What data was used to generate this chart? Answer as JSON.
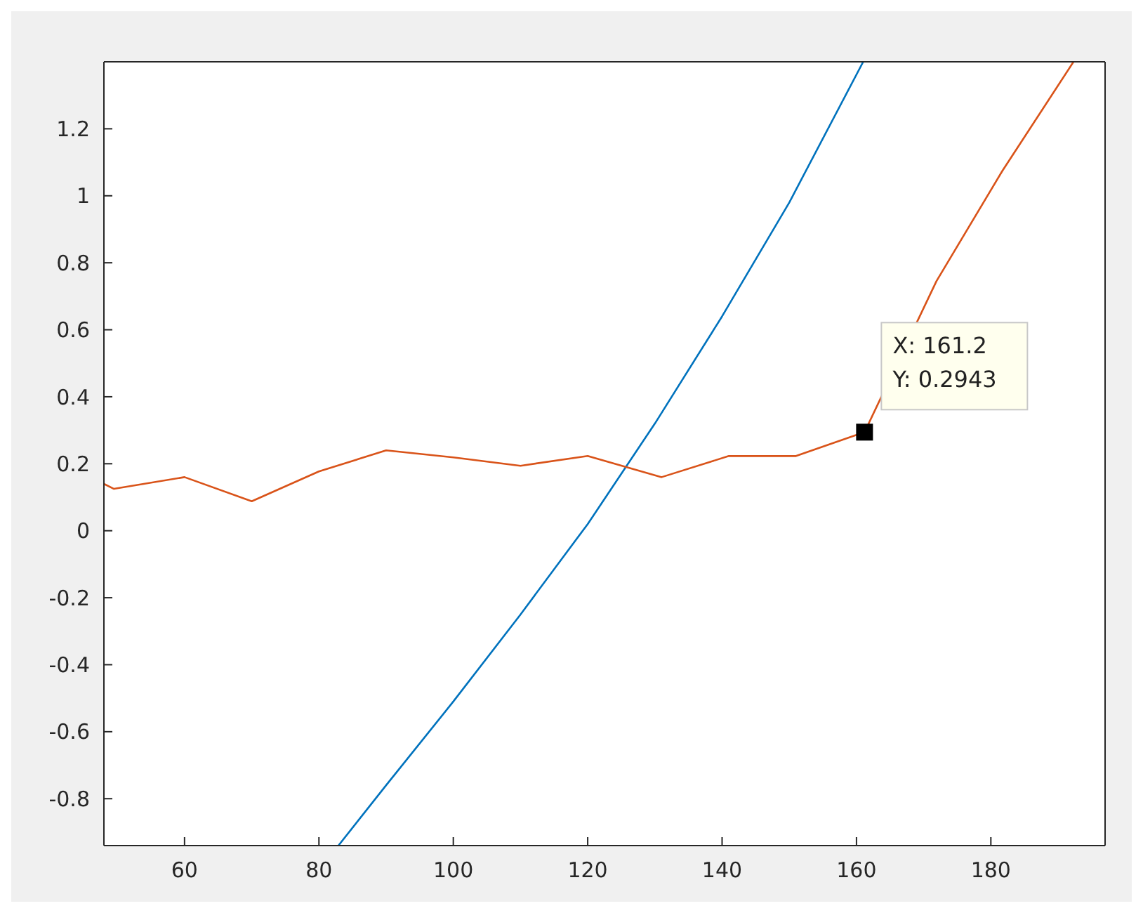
{
  "chart_data": {
    "type": "line",
    "xlim": [
      48,
      197
    ],
    "ylim": [
      -0.94,
      1.4
    ],
    "xticks": [
      60,
      80,
      100,
      120,
      140,
      160,
      180
    ],
    "yticks": [
      -0.8,
      -0.6,
      -0.4,
      -0.2,
      0,
      0.2,
      0.4,
      0.6,
      0.8,
      1,
      1.2
    ],
    "marker": "none",
    "line_style": "solid",
    "series": [
      {
        "color": "#0072bd",
        "x": [
          82.9,
          90,
          100,
          110,
          120,
          130,
          140,
          150,
          161
        ],
        "values": [
          -0.94,
          -0.76,
          -0.51,
          -0.25,
          0.02,
          0.32,
          0.64,
          0.98,
          1.4
        ]
      },
      {
        "color": "#d95319",
        "x": [
          48,
          49.5,
          60,
          70,
          80,
          90,
          100,
          110,
          120,
          131,
          141,
          151,
          161.2,
          171.9,
          181.7,
          192.3
        ],
        "values": [
          0.14,
          0.125,
          0.16,
          0.088,
          0.177,
          0.24,
          0.219,
          0.194,
          0.223,
          0.16,
          0.223,
          0.223,
          0.2943,
          0.745,
          1.074,
          1.4
        ]
      }
    ],
    "annotations": [
      {
        "text": "X: 161.2\nY: 0.2943",
        "x": 161.2,
        "y": 0.2943
      }
    ]
  }
}
